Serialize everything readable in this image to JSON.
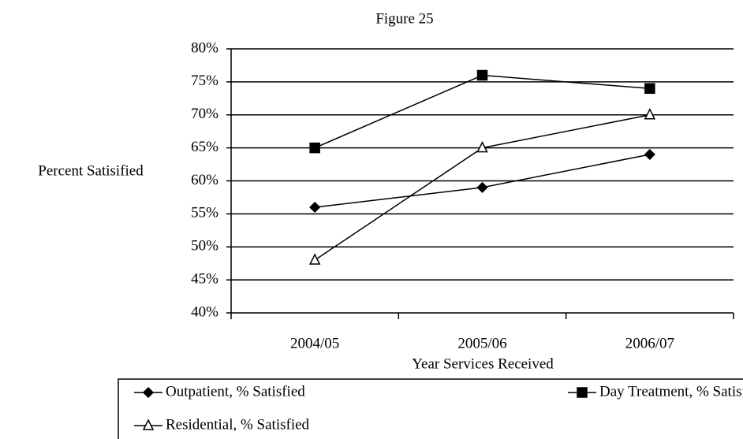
{
  "chart_data": {
    "type": "line",
    "title": "Figure 25",
    "x_label": "Year Services Received",
    "y_label": "Percent Satisified",
    "categories": [
      "2004/05",
      "2005/06",
      "2006/07"
    ],
    "series": [
      {
        "name": "Outpatient, % Satisfied",
        "color": "#000000",
        "marker": "diamond",
        "values": [
          56,
          59,
          64
        ]
      },
      {
        "name": "Day Treatment, % Satisfied",
        "color": "#000000",
        "marker": "square",
        "values": [
          65,
          76,
          74
        ]
      },
      {
        "name": "Residential, % Satisfied",
        "color": "#000000",
        "marker": "triangle",
        "values": [
          48,
          65,
          70
        ]
      }
    ],
    "ylim": [
      40,
      80
    ],
    "yticks": [
      {
        "value": 40,
        "label": "40%"
      },
      {
        "value": 45,
        "label": "45%"
      },
      {
        "value": 50,
        "label": "50%"
      },
      {
        "value": 55,
        "label": "55%"
      },
      {
        "value": 60,
        "label": "60%"
      },
      {
        "value": 65,
        "label": "65%"
      },
      {
        "value": 70,
        "label": "70%"
      },
      {
        "value": 75,
        "label": "75%"
      },
      {
        "value": 80,
        "label": "80%"
      }
    ],
    "grid": true,
    "legend": "bottom"
  }
}
